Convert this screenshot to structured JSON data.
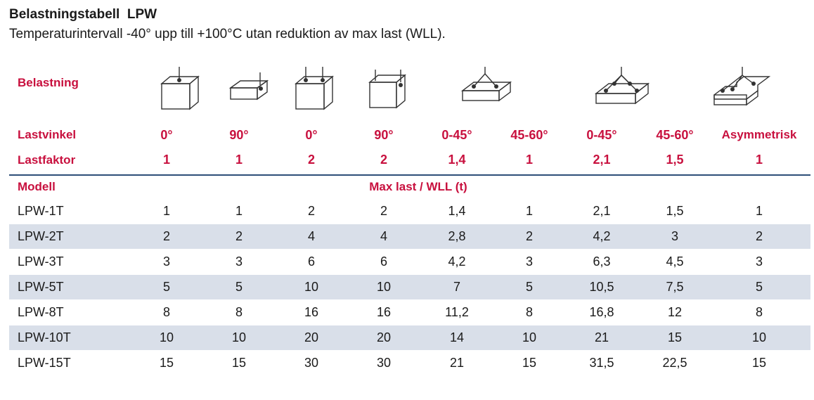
{
  "header": {
    "title": "Belastningstabell  LPW",
    "subtitle": "Temperaturintervall -40° upp till +100°C utan reduktion av max last (WLL)."
  },
  "labels": {
    "belastning": "Belastning",
    "lastvinkel": "Lastvinkel",
    "lastfaktor": "Lastfaktor",
    "modell": "Modell",
    "max_last": "Max last / WLL (t)"
  },
  "icons": [
    "cube-vertical-icon",
    "slab-horizontal-icon",
    "cube-two-point-icon",
    "cube-90-two-point-icon",
    "slab-three-point-icon",
    "slab-four-point-icon",
    "slab-asymmetric-icon"
  ],
  "columns": [
    {
      "vinkel": "0°",
      "faktor": "1"
    },
    {
      "vinkel": "90°",
      "faktor": "1"
    },
    {
      "vinkel": "0°",
      "faktor": "2"
    },
    {
      "vinkel": "90°",
      "faktor": "2"
    },
    {
      "vinkel": "0-45°",
      "faktor": "1,4"
    },
    {
      "vinkel": "45-60°",
      "faktor": "1"
    },
    {
      "vinkel": "0-45°",
      "faktor": "2,1"
    },
    {
      "vinkel": "45-60°",
      "faktor": "1,5"
    },
    {
      "vinkel": "Asymmetrisk",
      "faktor": "1"
    }
  ],
  "rows": [
    {
      "model": "LPW-1T",
      "values": [
        "1",
        "1",
        "2",
        "2",
        "1,4",
        "1",
        "2,1",
        "1,5",
        "1"
      ]
    },
    {
      "model": "LPW-2T",
      "values": [
        "2",
        "2",
        "4",
        "4",
        "2,8",
        "2",
        "4,2",
        "3",
        "2"
      ]
    },
    {
      "model": "LPW-3T",
      "values": [
        "3",
        "3",
        "6",
        "6",
        "4,2",
        "3",
        "6,3",
        "4,5",
        "3"
      ]
    },
    {
      "model": "LPW-5T",
      "values": [
        "5",
        "5",
        "10",
        "10",
        "7",
        "5",
        "10,5",
        "7,5",
        "5"
      ]
    },
    {
      "model": "LPW-8T",
      "values": [
        "8",
        "8",
        "16",
        "16",
        "11,2",
        "8",
        "16,8",
        "12",
        "8"
      ]
    },
    {
      "model": "LPW-10T",
      "values": [
        "10",
        "10",
        "20",
        "20",
        "14",
        "10",
        "21",
        "15",
        "10"
      ]
    },
    {
      "model": "LPW-15T",
      "values": [
        "15",
        "15",
        "30",
        "30",
        "21",
        "15",
        "31,5",
        "22,5",
        "15"
      ]
    }
  ],
  "colors": {
    "accent": "#c8103e",
    "rule": "#2d4f78",
    "band": "#d9dfe9"
  }
}
